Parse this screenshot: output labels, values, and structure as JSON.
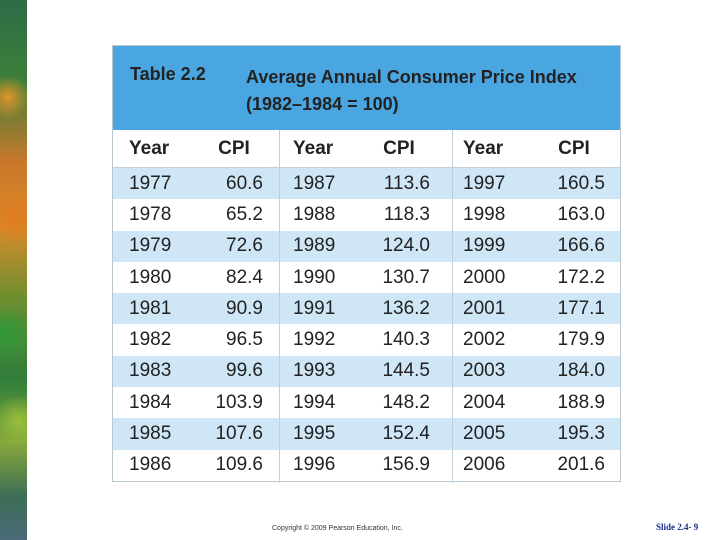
{
  "caption": {
    "number": "Table 2.2",
    "title": "Average Annual Consumer Price Index (1982–1984 = 100)"
  },
  "headers": [
    "Year",
    "CPI",
    "Year",
    "CPI",
    "Year",
    "CPI"
  ],
  "rows": [
    [
      "1977",
      "60.6",
      "1987",
      "113.6",
      "1997",
      "160.5"
    ],
    [
      "1978",
      "65.2",
      "1988",
      "118.3",
      "1998",
      "163.0"
    ],
    [
      "1979",
      "72.6",
      "1989",
      "124.0",
      "1999",
      "166.6"
    ],
    [
      "1980",
      "82.4",
      "1990",
      "130.7",
      "2000",
      "172.2"
    ],
    [
      "1981",
      "90.9",
      "1991",
      "136.2",
      "2001",
      "177.1"
    ],
    [
      "1982",
      "96.5",
      "1992",
      "140.3",
      "2002",
      "179.9"
    ],
    [
      "1983",
      "99.6",
      "1993",
      "144.5",
      "2003",
      "184.0"
    ],
    [
      "1984",
      "103.9",
      "1994",
      "148.2",
      "2004",
      "188.9"
    ],
    [
      "1985",
      "107.6",
      "1995",
      "152.4",
      "2005",
      "195.3"
    ],
    [
      "1986",
      "109.6",
      "1996",
      "156.9",
      "2006",
      "201.6"
    ]
  ],
  "footer": {
    "copyright": "Copyright © 2009 Pearson Education, Inc.",
    "slide": "Slide 2.4- 9"
  },
  "colors": {
    "caption_bg": "#4aa6e0",
    "row_stripe": "#cfe6f6",
    "slide_number": "#1a2f86"
  }
}
